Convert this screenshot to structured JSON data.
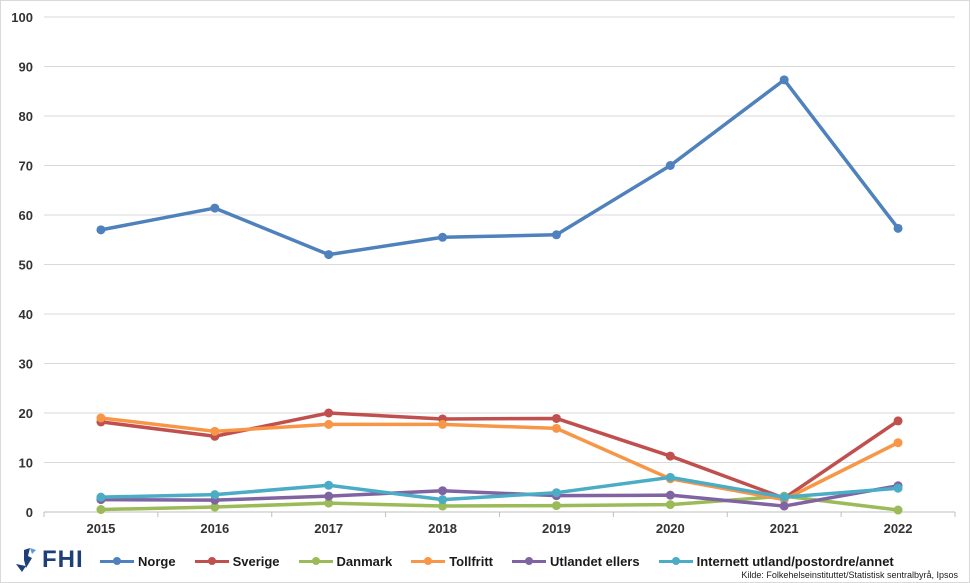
{
  "chart_data": {
    "type": "line",
    "title": "",
    "xlabel": "",
    "ylabel": "",
    "x": [
      "2015",
      "2016",
      "2017",
      "2018",
      "2019",
      "2020",
      "2021",
      "2022"
    ],
    "ylim": [
      0,
      100
    ],
    "yticks": [
      0,
      10,
      20,
      30,
      40,
      50,
      60,
      70,
      80,
      90,
      100
    ],
    "grid": true,
    "legend_position": "bottom",
    "series": [
      {
        "name": "Norge",
        "color": "#4f81bd",
        "values": [
          57.0,
          61.4,
          52.0,
          55.5,
          56.0,
          70.0,
          87.3,
          57.3
        ]
      },
      {
        "name": "Sverige",
        "color": "#c0504d",
        "values": [
          18.2,
          15.3,
          20.0,
          18.8,
          18.9,
          11.3,
          2.8,
          18.4
        ]
      },
      {
        "name": "Danmark",
        "color": "#9bbb59",
        "values": [
          0.5,
          1.0,
          1.8,
          1.2,
          1.3,
          1.5,
          3.2,
          0.4
        ]
      },
      {
        "name": "Tollfritt",
        "color": "#f79646",
        "values": [
          19.0,
          16.3,
          17.7,
          17.7,
          16.9,
          6.7,
          2.5,
          14.0
        ]
      },
      {
        "name": "Utlandet ellers",
        "color": "#8064a2",
        "values": [
          2.5,
          2.4,
          3.2,
          4.3,
          3.3,
          3.4,
          1.2,
          5.3
        ]
      },
      {
        "name": "Internett utland/postordre/annet",
        "color": "#4bacc6",
        "values": [
          3.0,
          3.5,
          5.4,
          2.5,
          3.9,
          7.0,
          3.0,
          4.8
        ]
      }
    ]
  },
  "branding": {
    "logo_text": "FHI",
    "logo_icon": "fhi-logo-icon"
  },
  "source_note": "Kilde: Folkehelseinstituttet/Statistisk sentralbyrå, Ipsos"
}
